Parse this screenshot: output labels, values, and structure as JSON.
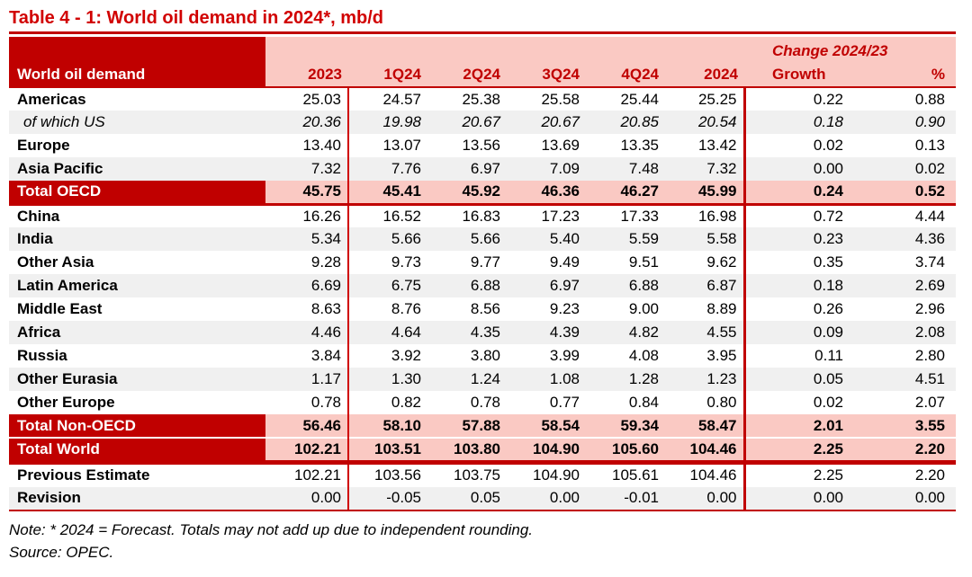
{
  "title": "Table 4 - 1: World oil demand in 2024*, mb/d",
  "colors": {
    "dark_red": "#C00000",
    "pink": "#FAC9C3",
    "alt_row": "#F0F0F0",
    "thin_line_red": "#D00000",
    "title_red": "#D10000"
  },
  "table": {
    "corner_label": "World oil demand",
    "change_header": "Change 2024/23",
    "columns": [
      "2023",
      "1Q24",
      "2Q24",
      "3Q24",
      "4Q24",
      "2024",
      "Growth",
      "%"
    ],
    "rows": [
      {
        "label": "Americas",
        "style": "plain",
        "values": [
          "25.03",
          "24.57",
          "25.38",
          "25.58",
          "25.44",
          "25.25",
          "0.22",
          "0.88"
        ]
      },
      {
        "label": "of which US",
        "style": "sub",
        "values": [
          "20.36",
          "19.98",
          "20.67",
          "20.67",
          "20.85",
          "20.54",
          "0.18",
          "0.90"
        ]
      },
      {
        "label": "Europe",
        "style": "plain",
        "values": [
          "13.40",
          "13.07",
          "13.56",
          "13.69",
          "13.35",
          "13.42",
          "0.02",
          "0.13"
        ]
      },
      {
        "label": "Asia Pacific",
        "style": "alt",
        "values": [
          "7.32",
          "7.76",
          "6.97",
          "7.09",
          "7.48",
          "7.32",
          "0.00",
          "0.02"
        ]
      },
      {
        "label": "Total OECD",
        "style": "total rule-below",
        "values": [
          "45.75",
          "45.41",
          "45.92",
          "46.36",
          "46.27",
          "45.99",
          "0.24",
          "0.52"
        ]
      },
      {
        "label": "China",
        "style": "plain",
        "values": [
          "16.26",
          "16.52",
          "16.83",
          "17.23",
          "17.33",
          "16.98",
          "0.72",
          "4.44"
        ]
      },
      {
        "label": "India",
        "style": "alt",
        "values": [
          "5.34",
          "5.66",
          "5.66",
          "5.40",
          "5.59",
          "5.58",
          "0.23",
          "4.36"
        ]
      },
      {
        "label": "Other Asia",
        "style": "plain",
        "values": [
          "9.28",
          "9.73",
          "9.77",
          "9.49",
          "9.51",
          "9.62",
          "0.35",
          "3.74"
        ]
      },
      {
        "label": "Latin America",
        "style": "alt",
        "values": [
          "6.69",
          "6.75",
          "6.88",
          "6.97",
          "6.88",
          "6.87",
          "0.18",
          "2.69"
        ]
      },
      {
        "label": "Middle East",
        "style": "plain",
        "values": [
          "8.63",
          "8.76",
          "8.56",
          "9.23",
          "9.00",
          "8.89",
          "0.26",
          "2.96"
        ]
      },
      {
        "label": "Africa",
        "style": "alt",
        "values": [
          "4.46",
          "4.64",
          "4.35",
          "4.39",
          "4.82",
          "4.55",
          "0.09",
          "2.08"
        ]
      },
      {
        "label": "Russia",
        "style": "plain",
        "values": [
          "3.84",
          "3.92",
          "3.80",
          "3.99",
          "4.08",
          "3.95",
          "0.11",
          "2.80"
        ]
      },
      {
        "label": "Other Eurasia",
        "style": "alt",
        "values": [
          "1.17",
          "1.30",
          "1.24",
          "1.08",
          "1.28",
          "1.23",
          "0.05",
          "4.51"
        ]
      },
      {
        "label": "Other Europe",
        "style": "plain",
        "values": [
          "0.78",
          "0.82",
          "0.78",
          "0.77",
          "0.84",
          "0.80",
          "0.02",
          "2.07"
        ]
      },
      {
        "label": "Total Non-OECD",
        "style": "total",
        "values": [
          "56.46",
          "58.10",
          "57.88",
          "58.54",
          "59.34",
          "58.47",
          "2.01",
          "3.55"
        ]
      },
      {
        "label": "Total World",
        "style": "total gap-above dbl-below",
        "values": [
          "102.21",
          "103.51",
          "103.80",
          "104.90",
          "105.60",
          "104.46",
          "2.25",
          "2.20"
        ]
      },
      {
        "label": "Previous Estimate",
        "style": "plain",
        "values": [
          "102.21",
          "103.56",
          "103.75",
          "104.90",
          "105.61",
          "104.46",
          "2.25",
          "2.20"
        ]
      },
      {
        "label": "Revision",
        "style": "alt table-end",
        "values": [
          "0.00",
          "-0.05",
          "0.05",
          "0.00",
          "-0.01",
          "0.00",
          "0.00",
          "0.00"
        ]
      }
    ]
  },
  "notes": {
    "note": "Note: * 2024 = Forecast. Totals may not add up due to independent rounding.",
    "source": "Source: OPEC."
  }
}
